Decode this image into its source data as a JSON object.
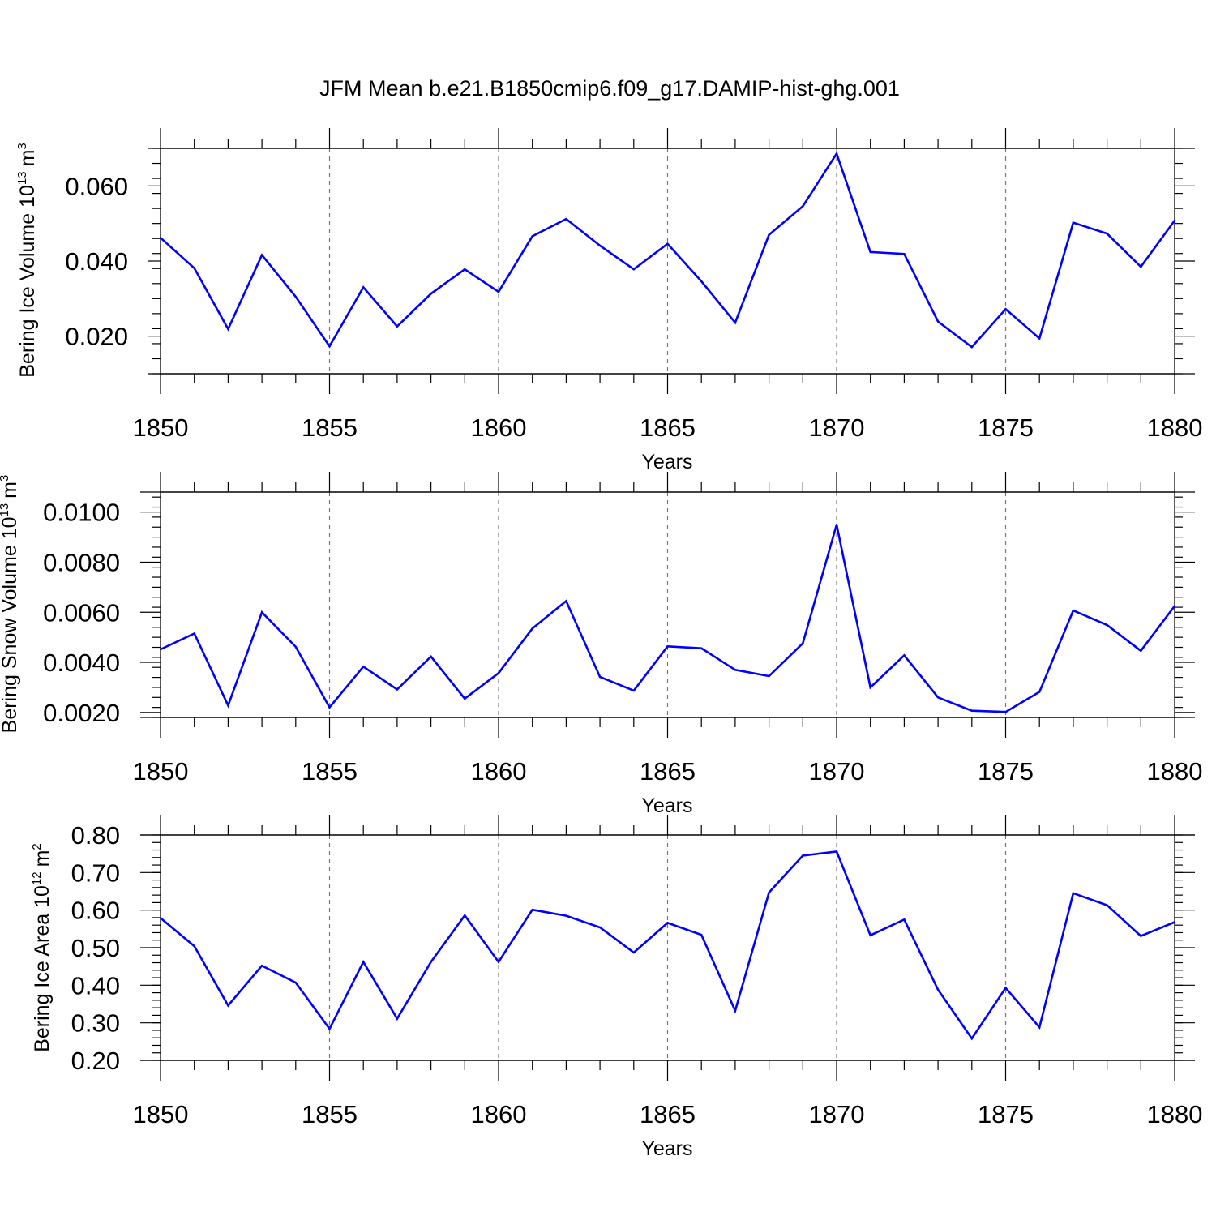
{
  "figure": {
    "title": "JFM Mean b.e21.B1850cmip6.f09_g17.DAMIP-hist-ghg.001",
    "line_color": "#0000ff"
  },
  "chart_data": [
    {
      "type": "line",
      "ylabel": "Bering Ice Volume 10^13 m^3",
      "ylabel_parts": {
        "main": "Bering Ice Volume 10",
        "exp": "13",
        "unit": "m",
        "unit_exp": "3"
      },
      "xlabel": "Years",
      "xlim": [
        1850,
        1880
      ],
      "ylim": [
        0.01,
        0.07
      ],
      "x_ticks": [
        "1850",
        "1855",
        "1860",
        "1865",
        "1870",
        "1875",
        "1880"
      ],
      "y_ticks": [
        0.02,
        0.04,
        0.06
      ],
      "y_tick_labels": [
        "0.020",
        "0.040",
        "0.060"
      ],
      "y_minor_step": 0.004,
      "x": [
        1850,
        1851,
        1852,
        1853,
        1854,
        1855,
        1856,
        1857,
        1858,
        1859,
        1860,
        1861,
        1862,
        1863,
        1864,
        1865,
        1866,
        1867,
        1868,
        1869,
        1870,
        1871,
        1872,
        1873,
        1874,
        1875,
        1876,
        1877,
        1878,
        1879,
        1880
      ],
      "values": [
        0.0462,
        0.0381,
        0.0219,
        0.0416,
        0.0305,
        0.0173,
        0.033,
        0.0226,
        0.0313,
        0.0378,
        0.0318,
        0.0466,
        0.0512,
        0.0441,
        0.0378,
        0.0446,
        0.0346,
        0.0236,
        0.047,
        0.0546,
        0.0686,
        0.0424,
        0.0419,
        0.0239,
        0.0171,
        0.0272,
        0.0194,
        0.0502,
        0.0473,
        0.0385,
        0.0508
      ]
    },
    {
      "type": "line",
      "ylabel": "Bering Snow Volume 10^13 m^3",
      "ylabel_parts": {
        "main": "Bering Snow Volume 10",
        "exp": "13",
        "unit": "m",
        "unit_exp": "3"
      },
      "xlabel": "Years",
      "xlim": [
        1850,
        1880
      ],
      "ylim": [
        0.0018,
        0.0108
      ],
      "x_ticks": [
        "1850",
        "1855",
        "1860",
        "1865",
        "1870",
        "1875",
        "1880"
      ],
      "y_ticks": [
        0.002,
        0.004,
        0.006,
        0.008,
        0.01
      ],
      "y_tick_labels": [
        "0.0020",
        "0.0040",
        "0.0060",
        "0.0080",
        "0.0100"
      ],
      "y_minor_step": 0.0004,
      "x": [
        1850,
        1851,
        1852,
        1853,
        1854,
        1855,
        1856,
        1857,
        1858,
        1859,
        1860,
        1861,
        1862,
        1863,
        1864,
        1865,
        1866,
        1867,
        1868,
        1869,
        1870,
        1871,
        1872,
        1873,
        1874,
        1875,
        1876,
        1877,
        1878,
        1879,
        1880
      ],
      "values": [
        0.00452,
        0.00515,
        0.00228,
        0.006,
        0.00462,
        0.0022,
        0.00383,
        0.00292,
        0.00423,
        0.00255,
        0.00357,
        0.00535,
        0.00645,
        0.00342,
        0.00287,
        0.00464,
        0.00456,
        0.0037,
        0.00345,
        0.00476,
        0.0095,
        0.003,
        0.00428,
        0.0026,
        0.00207,
        0.00202,
        0.00282,
        0.00607,
        0.00549,
        0.00446,
        0.00625
      ]
    },
    {
      "type": "line",
      "ylabel": "Bering Ice Area 10^12 m^2",
      "ylabel_parts": {
        "main": "Bering Ice Area 10",
        "exp": "12",
        "unit": "m",
        "unit_exp": "2"
      },
      "xlabel": "Years",
      "xlim": [
        1850,
        1880
      ],
      "ylim": [
        0.2,
        0.8
      ],
      "x_ticks": [
        "1850",
        "1855",
        "1860",
        "1865",
        "1870",
        "1875",
        "1880"
      ],
      "y_ticks": [
        0.2,
        0.3,
        0.4,
        0.5,
        0.6,
        0.7,
        0.8
      ],
      "y_tick_labels": [
        "0.20",
        "0.30",
        "0.40",
        "0.50",
        "0.60",
        "0.70",
        "0.80"
      ],
      "y_minor_step": 0.02,
      "x": [
        1850,
        1851,
        1852,
        1853,
        1854,
        1855,
        1856,
        1857,
        1858,
        1859,
        1860,
        1861,
        1862,
        1863,
        1864,
        1865,
        1866,
        1867,
        1868,
        1869,
        1870,
        1871,
        1872,
        1873,
        1874,
        1875,
        1876,
        1877,
        1878,
        1879,
        1880
      ],
      "values": [
        0.579,
        0.504,
        0.346,
        0.452,
        0.407,
        0.284,
        0.462,
        0.311,
        0.462,
        0.586,
        0.462,
        0.601,
        0.585,
        0.554,
        0.487,
        0.566,
        0.534,
        0.332,
        0.647,
        0.745,
        0.756,
        0.533,
        0.575,
        0.388,
        0.258,
        0.393,
        0.288,
        0.645,
        0.613,
        0.531,
        0.568
      ]
    }
  ]
}
